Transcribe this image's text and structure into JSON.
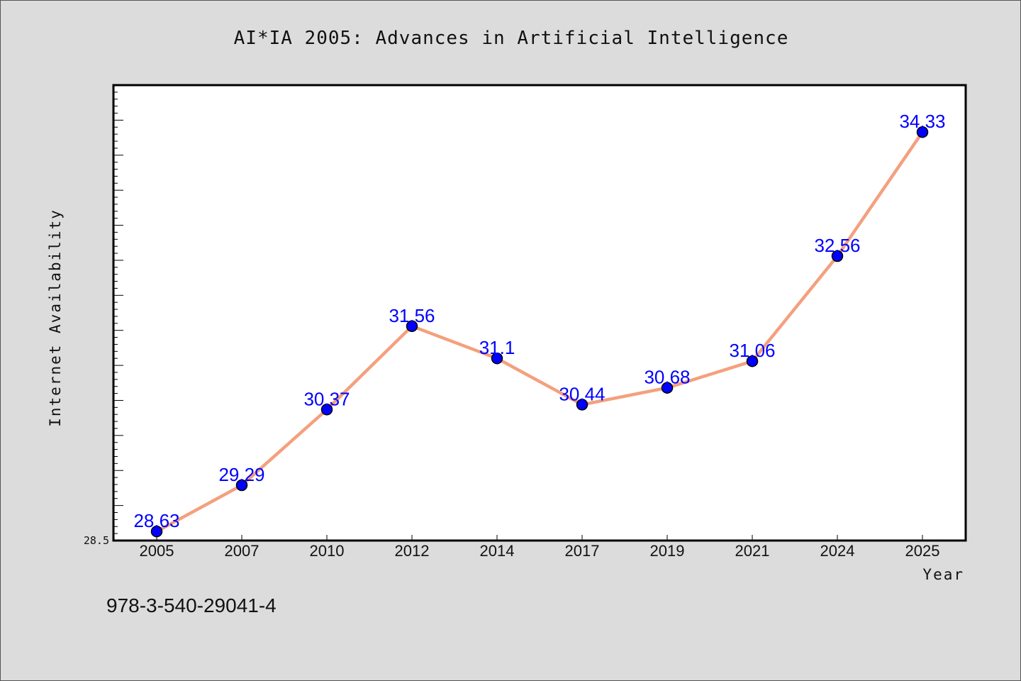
{
  "chart_data": {
    "type": "line",
    "title": "AI*IA 2005: Advances in Artificial Intelligence",
    "xlabel": "Year",
    "ylabel": "Internet Availability",
    "categories": [
      "2005",
      "2007",
      "2010",
      "2012",
      "2014",
      "2017",
      "2019",
      "2021",
      "2024",
      "2025"
    ],
    "series": [
      {
        "values": [
          28.63,
          29.29,
          30.37,
          31.56,
          31.1,
          30.44,
          30.68,
          31.06,
          32.56,
          34.33
        ]
      }
    ],
    "data_labels": [
      "28.63",
      "29.29",
      "30.37",
      "31.56",
      "31.1",
      "30.44",
      "30.68",
      "31.06",
      "32.56",
      "34.33"
    ],
    "ylim": [
      28.5,
      35.0
    ],
    "y_tick_labels": [
      "28.5"
    ],
    "grid": false,
    "legend": "none",
    "footnote": "978-3-540-29041-4",
    "colors": {
      "line": "#f4a07e",
      "marker": "#0000ff",
      "data_label": "#0000ff",
      "background": "#dcdcdc",
      "plot_background": "#ffffff"
    }
  }
}
